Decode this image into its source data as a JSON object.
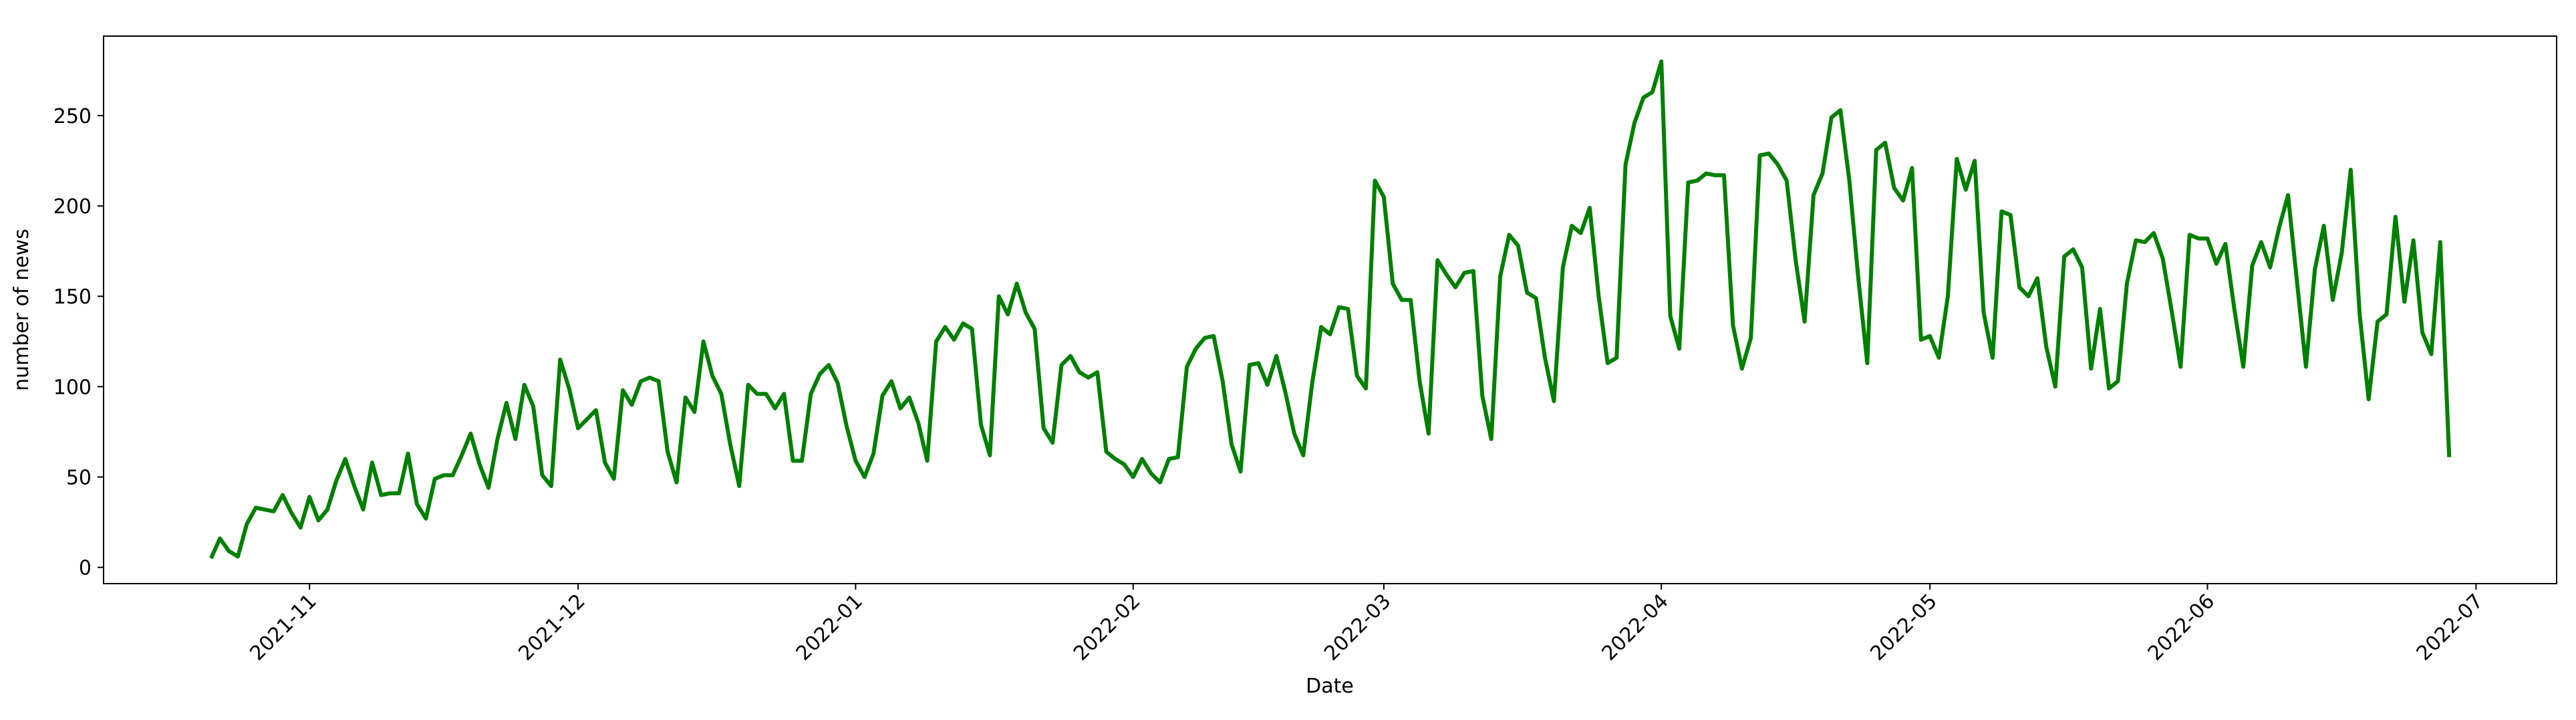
{
  "chart_data": {
    "type": "line",
    "x_label": "Date",
    "y_label": "number of news",
    "x": [
      "2021-10-21",
      "2021-10-22",
      "2021-10-23",
      "2021-10-24",
      "2021-10-25",
      "2021-10-26",
      "2021-10-27",
      "2021-10-28",
      "2021-10-29",
      "2021-10-30",
      "2021-10-31",
      "2021-11-01",
      "2021-11-02",
      "2021-11-03",
      "2021-11-04",
      "2021-11-05",
      "2021-11-06",
      "2021-11-07",
      "2021-11-08",
      "2021-11-09",
      "2021-11-10",
      "2021-11-11",
      "2021-11-12",
      "2021-11-13",
      "2021-11-14",
      "2021-11-15",
      "2021-11-16",
      "2021-11-17",
      "2021-11-18",
      "2021-11-19",
      "2021-11-20",
      "2021-11-21",
      "2021-11-22",
      "2021-11-23",
      "2021-11-24",
      "2021-11-25",
      "2021-11-26",
      "2021-11-27",
      "2021-11-28",
      "2021-11-29",
      "2021-11-30",
      "2021-12-01",
      "2021-12-02",
      "2021-12-03",
      "2021-12-04",
      "2021-12-05",
      "2021-12-06",
      "2021-12-07",
      "2021-12-08",
      "2021-12-09",
      "2021-12-10",
      "2021-12-11",
      "2021-12-12",
      "2021-12-13",
      "2021-12-14",
      "2021-12-15",
      "2021-12-16",
      "2021-12-17",
      "2021-12-18",
      "2021-12-19",
      "2021-12-20",
      "2021-12-21",
      "2021-12-22",
      "2021-12-23",
      "2021-12-24",
      "2021-12-25",
      "2021-12-26",
      "2021-12-27",
      "2021-12-28",
      "2021-12-29",
      "2021-12-30",
      "2021-12-31",
      "2022-01-01",
      "2022-01-02",
      "2022-01-03",
      "2022-01-04",
      "2022-01-05",
      "2022-01-06",
      "2022-01-07",
      "2022-01-08",
      "2022-01-09",
      "2022-01-10",
      "2022-01-11",
      "2022-01-12",
      "2022-01-13",
      "2022-01-14",
      "2022-01-15",
      "2022-01-16",
      "2022-01-17",
      "2022-01-18",
      "2022-01-19",
      "2022-01-20",
      "2022-01-21",
      "2022-01-22",
      "2022-01-23",
      "2022-01-24",
      "2022-01-25",
      "2022-01-26",
      "2022-01-27",
      "2022-01-28",
      "2022-01-29",
      "2022-01-30",
      "2022-01-31",
      "2022-02-01",
      "2022-02-02",
      "2022-02-03",
      "2022-02-04",
      "2022-02-05",
      "2022-02-06",
      "2022-02-07",
      "2022-02-08",
      "2022-02-09",
      "2022-02-10",
      "2022-02-11",
      "2022-02-12",
      "2022-02-13",
      "2022-02-14",
      "2022-02-15",
      "2022-02-16",
      "2022-02-17",
      "2022-02-18",
      "2022-02-19",
      "2022-02-20",
      "2022-02-21",
      "2022-02-22",
      "2022-02-23",
      "2022-02-24",
      "2022-02-25",
      "2022-02-26",
      "2022-02-27",
      "2022-02-28",
      "2022-03-01",
      "2022-03-02",
      "2022-03-03",
      "2022-03-04",
      "2022-03-05",
      "2022-03-06",
      "2022-03-07",
      "2022-03-08",
      "2022-03-09",
      "2022-03-10",
      "2022-03-11",
      "2022-03-12",
      "2022-03-13",
      "2022-03-14",
      "2022-03-15",
      "2022-03-16",
      "2022-03-17",
      "2022-03-18",
      "2022-03-19",
      "2022-03-20",
      "2022-03-21",
      "2022-03-22",
      "2022-03-23",
      "2022-03-24",
      "2022-03-25",
      "2022-03-26",
      "2022-03-27",
      "2022-03-28",
      "2022-03-29",
      "2022-03-30",
      "2022-03-31",
      "2022-04-01",
      "2022-04-02",
      "2022-04-03",
      "2022-04-04",
      "2022-04-05",
      "2022-04-06",
      "2022-04-07",
      "2022-04-08",
      "2022-04-09",
      "2022-04-10",
      "2022-04-11",
      "2022-04-12",
      "2022-04-13",
      "2022-04-14",
      "2022-04-15",
      "2022-04-16",
      "2022-04-17",
      "2022-04-18",
      "2022-04-19",
      "2022-04-20",
      "2022-04-21",
      "2022-04-22",
      "2022-04-23",
      "2022-04-24",
      "2022-04-25",
      "2022-04-26",
      "2022-04-27",
      "2022-04-28",
      "2022-04-29",
      "2022-04-30",
      "2022-05-01",
      "2022-05-02",
      "2022-05-03",
      "2022-05-04",
      "2022-05-05",
      "2022-05-06",
      "2022-05-07",
      "2022-05-08",
      "2022-05-09",
      "2022-05-10",
      "2022-05-11",
      "2022-05-12",
      "2022-05-13",
      "2022-05-14",
      "2022-05-15",
      "2022-05-16",
      "2022-05-17",
      "2022-05-18",
      "2022-05-19",
      "2022-05-20",
      "2022-05-21",
      "2022-05-22",
      "2022-05-23",
      "2022-05-24",
      "2022-05-25",
      "2022-05-26",
      "2022-05-27",
      "2022-05-28",
      "2022-05-29",
      "2022-05-30",
      "2022-05-31",
      "2022-06-01",
      "2022-06-02",
      "2022-06-03",
      "2022-06-04",
      "2022-06-05",
      "2022-06-06",
      "2022-06-07",
      "2022-06-08",
      "2022-06-09",
      "2022-06-10",
      "2022-06-11",
      "2022-06-12",
      "2022-06-13",
      "2022-06-14",
      "2022-06-15",
      "2022-06-16",
      "2022-06-17",
      "2022-06-18",
      "2022-06-19",
      "2022-06-20",
      "2022-06-21",
      "2022-06-22",
      "2022-06-23",
      "2022-06-24",
      "2022-06-25",
      "2022-06-26",
      "2022-06-27",
      "2022-06-28"
    ],
    "series": [
      {
        "color": "#008000",
        "values": [
          5,
          16,
          9,
          6,
          24,
          33,
          32,
          31,
          40,
          30,
          22,
          39,
          26,
          32,
          48,
          60,
          45,
          32,
          58,
          40,
          41,
          41,
          63,
          35,
          27,
          49,
          51,
          51,
          62,
          74,
          57,
          44,
          71,
          91,
          71,
          101,
          89,
          51,
          45,
          115,
          99,
          77,
          82,
          87,
          58,
          49,
          98,
          90,
          103,
          105,
          103,
          64,
          47,
          94,
          86,
          125,
          106,
          96,
          68,
          45,
          101,
          96,
          96,
          88,
          96,
          59,
          59,
          96,
          107,
          112,
          102,
          78,
          59,
          50,
          63,
          95,
          103,
          88,
          94,
          80,
          59,
          125,
          133,
          126,
          135,
          132,
          79,
          62,
          150,
          140,
          157,
          141,
          132,
          77,
          69,
          112,
          117,
          108,
          105,
          108,
          64,
          60,
          57,
          50,
          60,
          52,
          47,
          60,
          61,
          111,
          121,
          127,
          128,
          103,
          68,
          53,
          112,
          113,
          101,
          117,
          97,
          74,
          62,
          102,
          133,
          129,
          144,
          143,
          106,
          99,
          214,
          205,
          157,
          148,
          148,
          103,
          74,
          170,
          162,
          155,
          163,
          164,
          95,
          71,
          161,
          184,
          178,
          152,
          149,
          116,
          92,
          166,
          189,
          185,
          199,
          150,
          113,
          116,
          223,
          246,
          260,
          263,
          280,
          139,
          121,
          213,
          214,
          218,
          217,
          217,
          134,
          110,
          127,
          228,
          229,
          223,
          214,
          170,
          136,
          206,
          218,
          249,
          253,
          214,
          160,
          113,
          231,
          235,
          210,
          203,
          221,
          126,
          128,
          116,
          150,
          226,
          209,
          225,
          141,
          116,
          197,
          195,
          155,
          150,
          160,
          122,
          100,
          172,
          176,
          166,
          110,
          143,
          99,
          103,
          157,
          181,
          180,
          185,
          171,
          142,
          111,
          184,
          182,
          182,
          168,
          179,
          143,
          111,
          167,
          180,
          166,
          188,
          206,
          158,
          111,
          165,
          189,
          148,
          174,
          220,
          140,
          93,
          136,
          140,
          194,
          147,
          181,
          130,
          118,
          180,
          61
        ]
      }
    ],
    "xlim": [
      "2021-10-09",
      "2022-07-10"
    ],
    "xticks": [
      "2021-11",
      "2021-12",
      "2022-01",
      "2022-02",
      "2022-03",
      "2022-04",
      "2022-05",
      "2022-06",
      "2022-07"
    ],
    "ylim": [
      -9,
      294
    ],
    "yticks": [
      0,
      50,
      100,
      150,
      200,
      250
    ]
  }
}
